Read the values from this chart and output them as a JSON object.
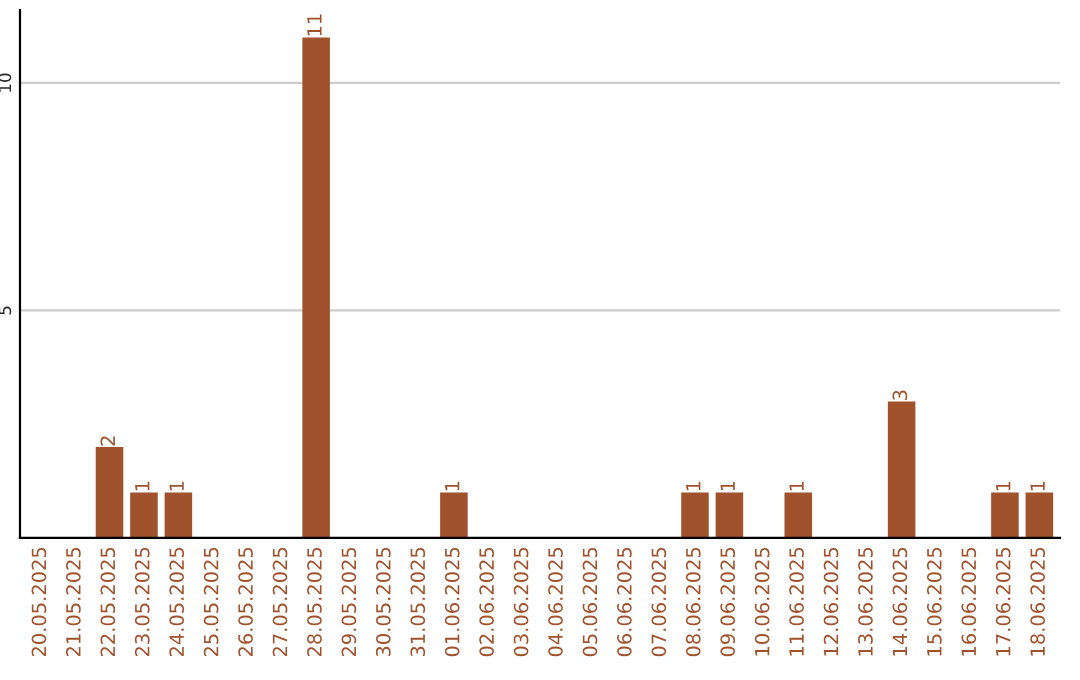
{
  "chart_data": {
    "type": "bar",
    "categories": [
      "20.05.2025",
      "21.05.2025",
      "22.05.2025",
      "23.05.2025",
      "24.05.2025",
      "25.05.2025",
      "26.05.2025",
      "27.05.2025",
      "28.05.2025",
      "29.05.2025",
      "30.05.2025",
      "31.05.2025",
      "01.06.2025",
      "02.06.2025",
      "03.06.2025",
      "04.06.2025",
      "05.06.2025",
      "06.06.2025",
      "07.06.2025",
      "08.06.2025",
      "09.06.2025",
      "10.06.2025",
      "11.06.2025",
      "12.06.2025",
      "13.06.2025",
      "14.06.2025",
      "15.06.2025",
      "16.06.2025",
      "17.06.2025",
      "18.06.2025"
    ],
    "values": [
      0,
      0,
      2,
      1,
      1,
      0,
      0,
      0,
      11,
      0,
      0,
      0,
      1,
      0,
      0,
      0,
      0,
      0,
      0,
      1,
      1,
      0,
      1,
      0,
      0,
      3,
      0,
      0,
      1,
      1
    ],
    "value_labels": [
      null,
      null,
      "2",
      "1",
      "1",
      null,
      null,
      null,
      "11",
      null,
      null,
      null,
      "1",
      null,
      null,
      null,
      null,
      null,
      null,
      "1",
      "1",
      null,
      "1",
      null,
      null,
      "3",
      null,
      null,
      "1",
      "1"
    ],
    "color": "#a0522d",
    "ylim": [
      0,
      11.6
    ],
    "yticks": [
      5,
      10
    ],
    "grid": "y"
  }
}
